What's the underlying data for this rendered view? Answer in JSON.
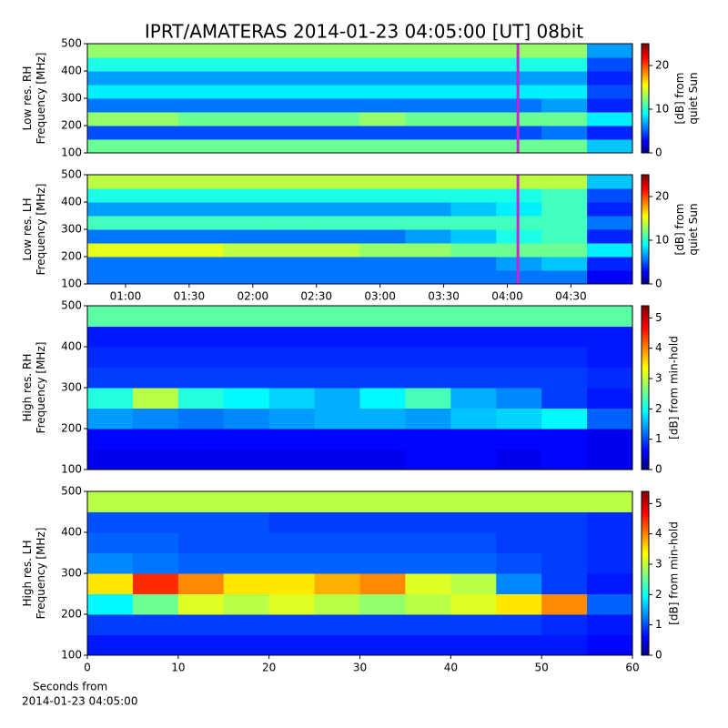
{
  "chart_data": [
    {
      "type": "heatmap",
      "title": "IPRT/AMATERAS 2014-01-23 04:05:00 [UT]   08bit",
      "ylabel": [
        "Low res. RH",
        "Frequency [MHz]"
      ],
      "colorbar_label": [
        "[dB] from",
        "quiet Sun"
      ],
      "xlim": [
        42,
        299
      ],
      "ylim": [
        100,
        500
      ],
      "yticks": [
        100,
        200,
        300,
        400,
        500
      ],
      "zlim": [
        0,
        25
      ],
      "zticks": [
        0,
        10,
        20
      ],
      "vline": 245,
      "vline_color": "#d020d0",
      "z": [
        [
          12,
          12,
          12,
          12,
          12,
          12,
          12,
          12,
          12,
          12,
          12,
          8
        ],
        [
          5,
          5,
          5,
          5,
          5,
          5,
          5,
          5,
          5,
          5,
          6,
          4
        ],
        [
          13,
          13,
          12,
          12,
          12,
          12,
          13,
          12,
          12,
          12,
          12,
          9
        ],
        [
          6,
          6,
          6,
          6,
          6,
          6,
          6,
          6,
          6,
          6,
          7,
          4
        ],
        [
          9,
          9,
          9,
          9,
          9,
          9,
          9,
          9,
          9,
          9,
          9,
          5
        ],
        [
          7,
          7,
          7,
          7,
          7,
          7,
          7,
          7,
          7,
          7,
          7,
          4
        ],
        [
          10,
          10,
          10,
          10,
          10,
          10,
          10,
          10,
          10,
          10,
          10,
          5
        ],
        [
          13,
          13,
          13,
          13,
          13,
          13,
          13,
          13,
          13,
          13,
          13,
          7
        ]
      ]
    },
    {
      "type": "heatmap",
      "ylabel": [
        "Low res. LH",
        "Frequency [MHz]"
      ],
      "colorbar_label": [
        "[dB] from",
        "quiet Sun"
      ],
      "xlim": [
        42,
        299
      ],
      "ylim": [
        100,
        500
      ],
      "yticks": [
        100,
        200,
        300,
        400,
        500
      ],
      "xticks": [
        {
          "value": 60,
          "label": "01:00"
        },
        {
          "value": 90,
          "label": "01:30"
        },
        {
          "value": 120,
          "label": "02:00"
        },
        {
          "value": 150,
          "label": "02:30"
        },
        {
          "value": 180,
          "label": "03:00"
        },
        {
          "value": 210,
          "label": "03:30"
        },
        {
          "value": 240,
          "label": "04:00"
        },
        {
          "value": 270,
          "label": "04:30"
        }
      ],
      "zlim": [
        0,
        25
      ],
      "zticks": [
        0,
        10,
        20
      ],
      "vline": 245,
      "vline_color": "#d020d0",
      "z": [
        [
          6,
          6,
          6,
          6,
          6,
          6,
          6,
          6,
          6,
          6,
          6,
          3
        ],
        [
          6,
          6,
          6,
          6,
          6,
          6,
          6,
          6,
          6,
          7,
          8,
          4
        ],
        [
          15,
          15,
          15,
          14,
          14,
          14,
          13,
          13,
          12,
          12,
          12,
          9
        ],
        [
          6,
          6,
          6,
          6,
          6,
          6,
          6,
          7,
          8,
          10,
          11,
          4
        ],
        [
          11,
          11,
          11,
          11,
          11,
          11,
          11,
          11,
          11,
          11,
          11,
          6
        ],
        [
          7,
          7,
          7,
          7,
          7,
          7,
          7,
          7,
          8,
          9,
          11,
          4
        ],
        [
          10,
          10,
          10,
          10,
          10,
          10,
          10,
          10,
          10,
          10,
          11,
          5
        ],
        [
          14,
          14,
          14,
          14,
          14,
          14,
          14,
          14,
          14,
          14,
          14,
          8
        ]
      ]
    },
    {
      "type": "heatmap",
      "ylabel": [
        "High res. RH",
        "Frequency [MHz]"
      ],
      "colorbar_label": [
        "[dB] from min-hold"
      ],
      "xlim": [
        0,
        60
      ],
      "ylim": [
        100,
        500
      ],
      "yticks": [
        100,
        200,
        300,
        400,
        500
      ],
      "zlim": [
        0,
        5.4
      ],
      "zticks": [
        0,
        1,
        2,
        3,
        4,
        5
      ],
      "z": [
        [
          0.6,
          0.6,
          0.6,
          0.6,
          0.6,
          0.6,
          0.6,
          0.7,
          0.7,
          0.6,
          0.7,
          0.6
        ],
        [
          0.7,
          0.7,
          0.7,
          0.7,
          0.7,
          0.7,
          0.7,
          0.7,
          0.7,
          0.7,
          0.7,
          0.6
        ],
        [
          1.5,
          1.4,
          1.3,
          1.4,
          1.5,
          1.6,
          1.6,
          1.5,
          1.7,
          1.8,
          2.0,
          1.2
        ],
        [
          2.2,
          3.0,
          2.2,
          2.0,
          1.8,
          1.6,
          2.0,
          2.4,
          1.6,
          1.4,
          1.0,
          0.8
        ],
        [
          1.0,
          1.0,
          1.0,
          1.0,
          1.0,
          1.0,
          1.0,
          1.0,
          1.0,
          1.0,
          1.0,
          0.9
        ],
        [
          0.9,
          0.9,
          0.9,
          0.9,
          0.9,
          0.9,
          0.9,
          0.9,
          0.9,
          0.9,
          0.9,
          0.8
        ],
        [
          0.8,
          0.8,
          0.8,
          0.8,
          0.8,
          0.8,
          0.8,
          0.8,
          0.8,
          0.8,
          0.8,
          0.8
        ],
        [
          2.5,
          2.5,
          2.5,
          2.5,
          2.5,
          2.5,
          2.5,
          2.5,
          2.5,
          2.5,
          2.5,
          2.5
        ]
      ]
    },
    {
      "type": "heatmap",
      "ylabel": [
        "High res. LH",
        "Frequency [MHz]"
      ],
      "colorbar_label": [
        "[dB] from min-hold"
      ],
      "xlim": [
        0,
        60
      ],
      "ylim": [
        100,
        500
      ],
      "yticks": [
        100,
        200,
        300,
        400,
        500
      ],
      "xticks": [
        0,
        10,
        20,
        30,
        40,
        50,
        60
      ],
      "xlabel": [
        "Seconds from",
        "2014-01-23 04:05:00"
      ],
      "zlim": [
        0,
        5.4
      ],
      "zticks": [
        0,
        1,
        2,
        3,
        4,
        5
      ],
      "z": [
        [
          0.8,
          0.8,
          0.8,
          0.8,
          0.8,
          0.8,
          0.8,
          0.8,
          0.8,
          0.8,
          0.8,
          0.7
        ],
        [
          1.0,
          1.0,
          1.0,
          1.0,
          1.0,
          1.0,
          1.0,
          1.0,
          1.0,
          1.0,
          0.9,
          0.8
        ],
        [
          2.0,
          2.6,
          3.2,
          3.0,
          3.2,
          3.0,
          2.8,
          3.0,
          3.2,
          3.5,
          4.0,
          1.2
        ],
        [
          3.5,
          4.5,
          4.0,
          3.5,
          3.5,
          3.8,
          4.0,
          3.2,
          3.0,
          1.4,
          1.0,
          0.8
        ],
        [
          1.4,
          1.3,
          1.2,
          1.2,
          1.2,
          1.2,
          1.2,
          1.2,
          1.2,
          1.1,
          1.0,
          0.9
        ],
        [
          1.2,
          1.2,
          1.1,
          1.1,
          1.1,
          1.1,
          1.1,
          1.1,
          1.1,
          1.0,
          1.0,
          0.9
        ],
        [
          1.1,
          1.1,
          1.1,
          1.1,
          1.0,
          1.0,
          1.0,
          1.0,
          1.0,
          1.0,
          1.0,
          0.9
        ],
        [
          3.0,
          3.0,
          3.0,
          3.0,
          3.0,
          3.0,
          3.0,
          3.0,
          3.0,
          3.0,
          3.0,
          3.0
        ]
      ]
    }
  ]
}
